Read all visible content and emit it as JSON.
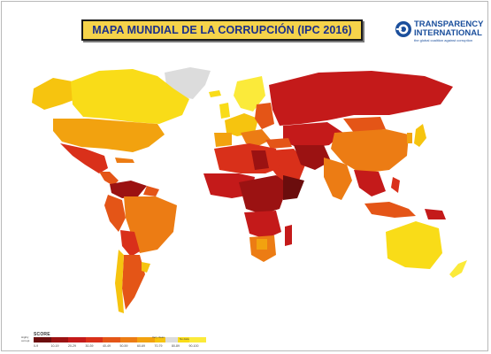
{
  "header": {
    "title": "MAPA MUNDIAL DE LA CORRUPCIÓN  (IPC 2016)"
  },
  "logo": {
    "line1": "TRANSPARENCY",
    "line2": "INTERNATIONAL",
    "tagline": "the global coalition against corruption",
    "icon": "globe-ti-icon",
    "color": "#1b4f9c"
  },
  "legend": {
    "title": "SCORE",
    "low_label": "Highly corrupt",
    "high_label": "Very clean",
    "no_data_label": "No data",
    "ranges": [
      "0-9",
      "10-19",
      "20-29",
      "30-39",
      "40-49",
      "50-59",
      "60-69",
      "70-79",
      "80-89",
      "90-100"
    ],
    "colors": [
      "#6b0d0d",
      "#9b1212",
      "#c41a1a",
      "#d9301a",
      "#e45517",
      "#ec7c14",
      "#f2a20f",
      "#f6c40f",
      "#f9dc18",
      "#fbea3a"
    ],
    "no_data_color": "#dcdcdc"
  },
  "map_colors": {
    "ocean": "#ffffff",
    "border": "#ffffff"
  }
}
